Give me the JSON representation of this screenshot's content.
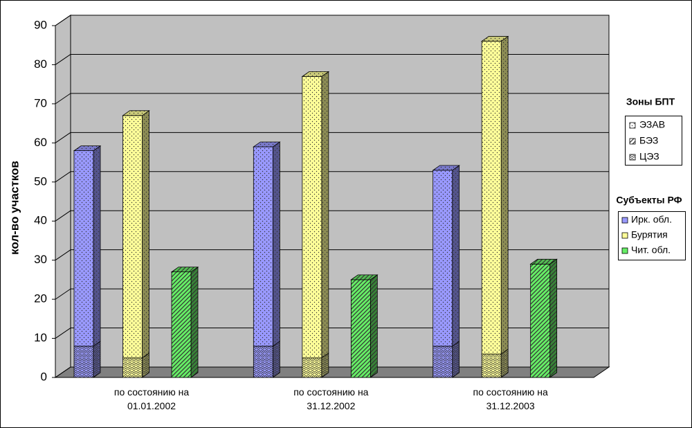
{
  "chart_data": {
    "type": "bar3d-stacked",
    "y_label": "кол-во участков",
    "categories": [
      "по состоянию на 01.01.2002",
      "по состоянию на 31.12.2002",
      "по состоянию на 31.12.2003"
    ],
    "ylim": [
      0,
      90
    ],
    "yticks": [
      0,
      10,
      20,
      30,
      40,
      50,
      60,
      70,
      80,
      90
    ],
    "grid": true,
    "zones_legend_title": "Зоны БПТ",
    "zones": [
      {
        "name": "ЭЗАВ",
        "pattern": "dots"
      },
      {
        "name": "БЭЗ",
        "pattern": "diagonal"
      },
      {
        "name": "ЦЭЗ",
        "pattern": "wave"
      }
    ],
    "series_legend_title": "Субъекты РФ",
    "series": [
      {
        "name": "Ирк. обл.",
        "color": "#9999ff",
        "segments": [
          {
            "zone": "ЦЭЗ",
            "values": [
              8,
              8,
              8
            ]
          },
          {
            "zone": "ЭЗАВ",
            "values": [
              50,
              51,
              45
            ]
          }
        ]
      },
      {
        "name": "Бурятия",
        "color": "#ffff99",
        "segments": [
          {
            "zone": "ЦЭЗ",
            "values": [
              5,
              5,
              6
            ]
          },
          {
            "zone": "ЭЗАВ",
            "values": [
              62,
              72,
              80
            ]
          }
        ]
      },
      {
        "name": "Чит. обл.",
        "color": "#66ee66",
        "segments": [
          {
            "zone": "БЭЗ",
            "values": [
              27,
              25,
              29
            ]
          }
        ]
      }
    ]
  }
}
